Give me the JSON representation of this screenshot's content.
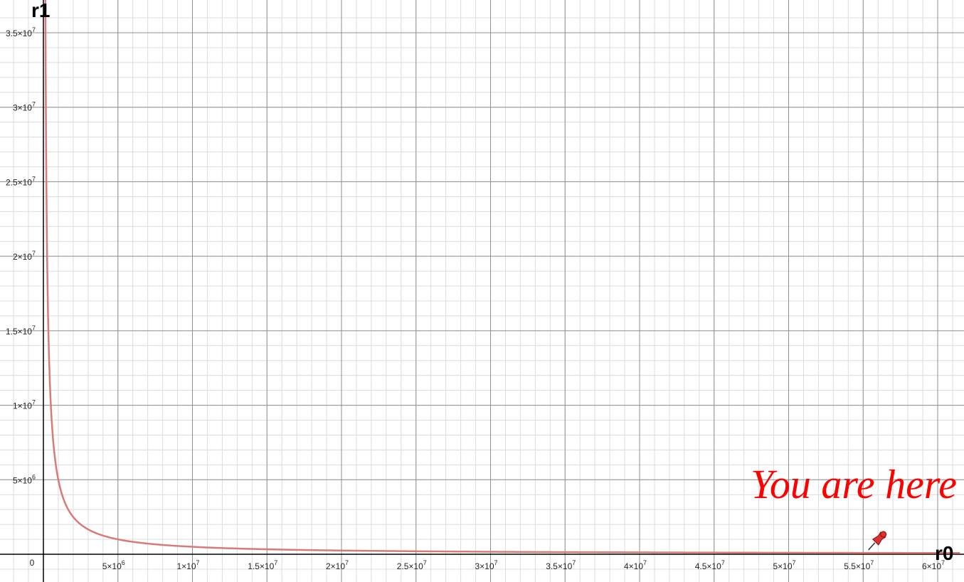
{
  "chart_data": {
    "type": "line",
    "title": "",
    "xlabel": "r0",
    "ylabel": "r1",
    "origin_label": "0",
    "xlim": [
      0,
      61500000
    ],
    "ylim": [
      -1700000,
      35900000
    ],
    "grid": true,
    "x_ticks": [
      {
        "value": 5000000,
        "mantissa": "5×10",
        "exp": "6"
      },
      {
        "value": 10000000,
        "mantissa": "1×10",
        "exp": "7"
      },
      {
        "value": 15000000,
        "mantissa": "1.5×10",
        "exp": "7"
      },
      {
        "value": 20000000,
        "mantissa": "2×10",
        "exp": "7"
      },
      {
        "value": 25000000,
        "mantissa": "2.5×10",
        "exp": "7"
      },
      {
        "value": 30000000,
        "mantissa": "3×10",
        "exp": "7"
      },
      {
        "value": 35000000,
        "mantissa": "3.5×10",
        "exp": "7"
      },
      {
        "value": 40000000,
        "mantissa": "4×10",
        "exp": "7"
      },
      {
        "value": 45000000,
        "mantissa": "4.5×10",
        "exp": "7"
      },
      {
        "value": 50000000,
        "mantissa": "5×10",
        "exp": "7"
      },
      {
        "value": 55000000,
        "mantissa": "5.5×10",
        "exp": "7"
      },
      {
        "value": 60000000,
        "mantissa": "6×10",
        "exp": "7"
      }
    ],
    "y_ticks": [
      {
        "value": 5000000,
        "mantissa": "5×10",
        "exp": "6"
      },
      {
        "value": 10000000,
        "mantissa": "1×10",
        "exp": "7"
      },
      {
        "value": 15000000,
        "mantissa": "1.5×10",
        "exp": "7"
      },
      {
        "value": 20000000,
        "mantissa": "2×10",
        "exp": "7"
      },
      {
        "value": 25000000,
        "mantissa": "2.5×10",
        "exp": "7"
      },
      {
        "value": 30000000,
        "mantissa": "3×10",
        "exp": "7"
      },
      {
        "value": 35000000,
        "mantissa": "3.5×10",
        "exp": "7"
      }
    ],
    "series": [
      {
        "color": "#d97a7a",
        "x": [
          120000,
          150000,
          200000,
          300000,
          500000,
          1000000,
          2000000,
          3000000,
          5000000,
          10000000,
          15000000,
          20000000,
          30000000,
          40000000,
          50000000,
          61500000
        ],
        "y": [
          41700000,
          33300000,
          25000000,
          16700000,
          10000000,
          5000000,
          2500000,
          1670000,
          1000000,
          500000,
          333000,
          250000,
          167000,
          125000,
          100000,
          81000
        ]
      }
    ],
    "annotations": [
      {
        "text": "You are here",
        "color": "#ff0000",
        "x": 57000000,
        "y": 4500000
      },
      {
        "marker": "pushpin-icon",
        "color": "#e03030",
        "x": 55500000,
        "y": 100000
      }
    ]
  },
  "colors": {
    "major_grid": "#8f8f8f",
    "minor_grid": "#dcdcdc",
    "axis": "#000000"
  }
}
